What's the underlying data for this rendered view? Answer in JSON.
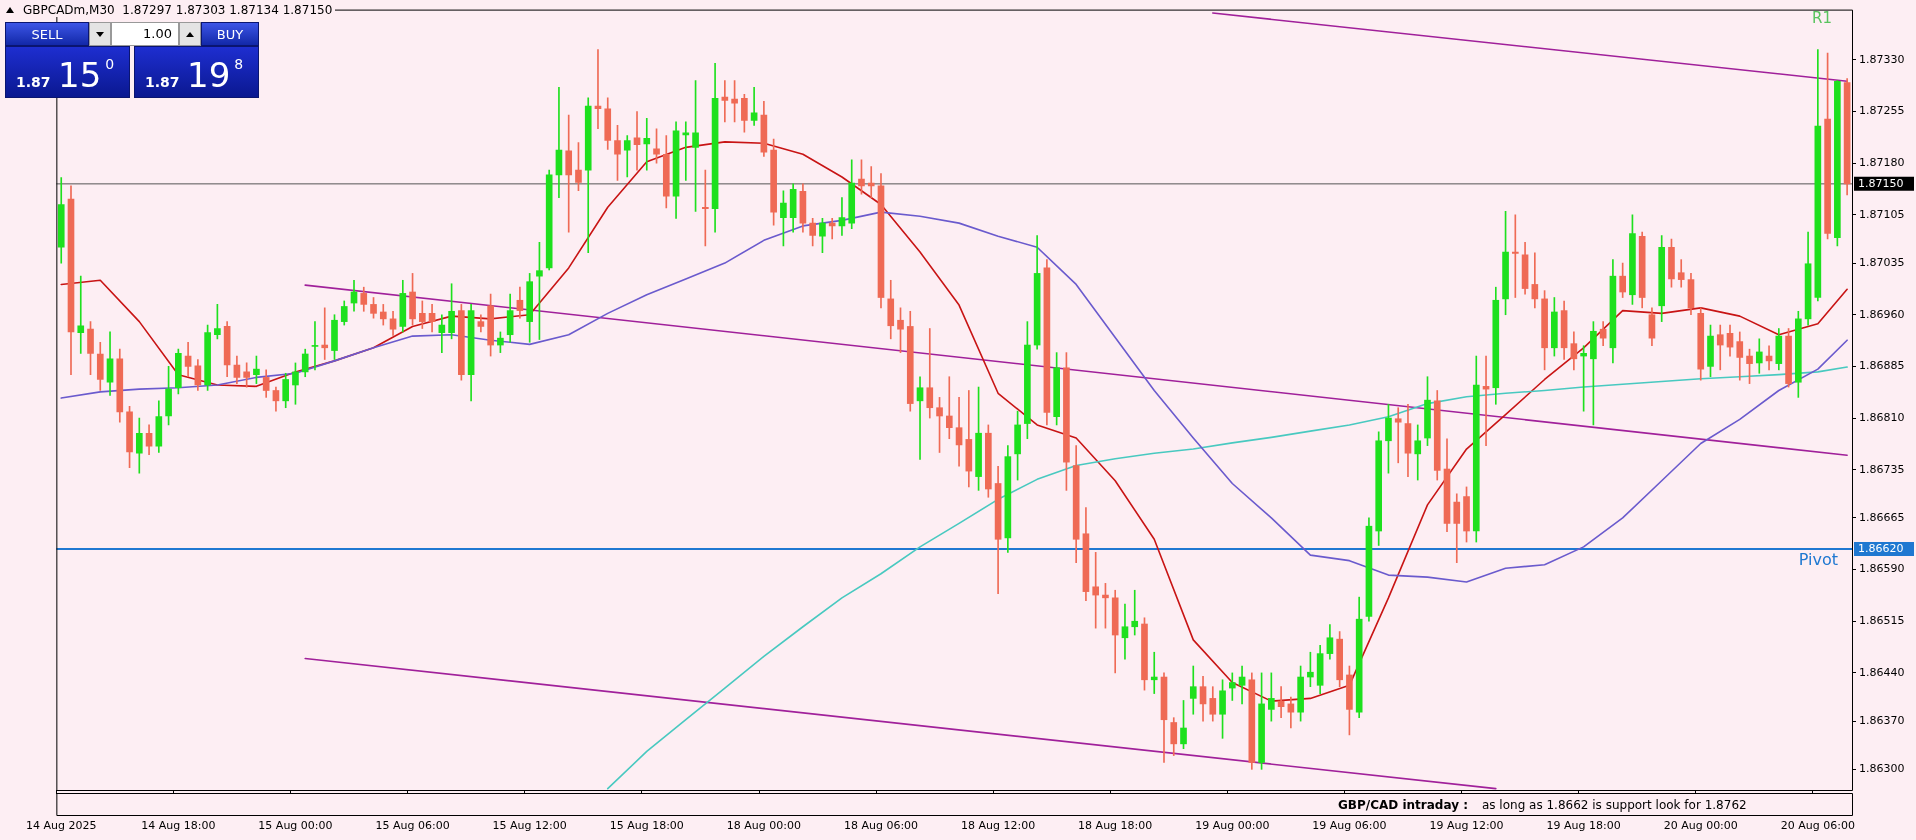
{
  "chart_data": {
    "type": "candlestick",
    "title": "GBPCADm,M30  1.87297 1.87303 1.87134 1.87150",
    "categories": [
      "14 Aug 2025",
      null,
      null,
      null,
      null,
      null,
      null,
      null,
      null,
      null,
      null,
      null,
      "14 Aug 18:00",
      null,
      null,
      null,
      null,
      null,
      null,
      null,
      null,
      null,
      null,
      null,
      "15 Aug 00:00",
      null,
      null,
      null,
      null,
      null,
      null,
      null,
      null,
      null,
      null,
      null,
      "15 Aug 06:00",
      null,
      null,
      null,
      null,
      null,
      null,
      null,
      null,
      null,
      null,
      null,
      "15 Aug 12:00",
      null,
      null,
      null,
      null,
      null,
      null,
      null,
      null,
      null,
      null,
      null,
      "15 Aug 18:00",
      null,
      null,
      null,
      null,
      null,
      null,
      null,
      null,
      null,
      null,
      null,
      "18 Aug 00:00",
      null,
      null,
      null,
      null,
      null,
      null,
      null,
      null,
      null,
      null,
      null,
      "18 Aug 06:00",
      null,
      null,
      null,
      null,
      null,
      null,
      null,
      null,
      null,
      null,
      null,
      "18 Aug 12:00",
      null,
      null,
      null,
      null,
      null,
      null,
      null,
      null,
      null,
      null,
      null,
      "18 Aug 18:00",
      null,
      null,
      null,
      null,
      null,
      null,
      null,
      null,
      null,
      null,
      null,
      "19 Aug 00:00",
      null,
      null,
      null,
      null,
      null,
      null,
      null,
      null,
      null,
      null,
      null,
      "19 Aug 06:00",
      null,
      null,
      null,
      null,
      null,
      null,
      null,
      null,
      null,
      null,
      null,
      "19 Aug 12:00",
      null,
      null,
      null,
      null,
      null,
      null,
      null,
      null,
      null,
      null,
      null,
      "19 Aug 18:00",
      null,
      null,
      null,
      null,
      null,
      null,
      null,
      null,
      null,
      null,
      null,
      "20 Aug 00:00",
      null,
      null,
      null,
      null,
      null,
      null,
      null,
      null,
      null,
      null,
      null,
      "20 Aug 06:00",
      null,
      null,
      null
    ],
    "ohlc": [
      [
        1.87058,
        1.87159,
        1.87035,
        1.8712
      ],
      [
        1.87128,
        1.87147,
        1.86873,
        1.86935
      ],
      [
        1.86934,
        1.87016,
        1.86904,
        1.86944
      ],
      [
        1.86939,
        1.8695,
        1.86873,
        1.86904
      ],
      [
        1.86903,
        1.8692,
        1.8685,
        1.86866
      ],
      [
        1.86862,
        1.86935,
        1.86843,
        1.86896
      ],
      [
        1.86896,
        1.8691,
        1.86804,
        1.86819
      ],
      [
        1.86819,
        1.86827,
        1.86738,
        1.86761
      ],
      [
        1.86759,
        1.8681,
        1.8673,
        1.86788
      ],
      [
        1.86788,
        1.868,
        1.86757,
        1.86769
      ],
      [
        1.86769,
        1.86835,
        1.8676,
        1.86812
      ],
      [
        1.86813,
        1.86885,
        1.868,
        1.86852
      ],
      [
        1.86854,
        1.8691,
        1.86845,
        1.86904
      ],
      [
        1.869,
        1.8692,
        1.8687,
        1.86885
      ],
      [
        1.86886,
        1.86895,
        1.8685,
        1.86858
      ],
      [
        1.86858,
        1.86945,
        1.8685,
        1.86934
      ],
      [
        1.86931,
        1.86975,
        1.86925,
        1.8694
      ],
      [
        1.86943,
        1.8695,
        1.8687,
        1.86887
      ],
      [
        1.86887,
        1.869,
        1.8686,
        1.86869
      ],
      [
        1.86877,
        1.8689,
        1.86855,
        1.86869
      ],
      [
        1.86873,
        1.869,
        1.8686,
        1.86881
      ],
      [
        1.86869,
        1.8688,
        1.8684,
        1.8685
      ],
      [
        1.8685,
        1.86855,
        1.8682,
        1.86835
      ],
      [
        1.86835,
        1.86875,
        1.86825,
        1.86866
      ],
      [
        1.86858,
        1.8689,
        1.8683,
        1.86877
      ],
      [
        1.86877,
        1.8691,
        1.8687,
        1.86903
      ],
      [
        1.86914,
        1.8695,
        1.8688,
        1.86914
      ],
      [
        1.86916,
        1.8697,
        1.86895,
        1.86912
      ],
      [
        1.86908,
        1.8696,
        1.86895,
        1.86952
      ],
      [
        1.8695,
        1.8698,
        1.86945,
        1.86972
      ],
      [
        1.86977,
        1.8701,
        1.86965,
        1.86993
      ],
      [
        1.86991,
        1.87,
        1.86965,
        1.86975
      ],
      [
        1.86975,
        1.86985,
        1.86955,
        1.86962
      ],
      [
        1.86964,
        1.86975,
        1.86945,
        1.86954
      ],
      [
        1.86954,
        1.86965,
        1.8693,
        1.86939
      ],
      [
        1.86943,
        1.8701,
        1.86935,
        1.86991
      ],
      [
        1.86993,
        1.8702,
        1.86945,
        1.86954
      ],
      [
        1.86962,
        1.8698,
        1.8694,
        1.8695
      ],
      [
        1.86962,
        1.86975,
        1.86935,
        1.8695
      ],
      [
        1.86934,
        1.8696,
        1.86905,
        1.86945
      ],
      [
        1.86934,
        1.87005,
        1.86925,
        1.86965
      ],
      [
        1.86966,
        1.86975,
        1.86865,
        1.86873
      ],
      [
        1.86873,
        1.86975,
        1.86835,
        1.86966
      ],
      [
        1.8695,
        1.8696,
        1.86935,
        1.86943
      ],
      [
        1.86973,
        1.8699,
        1.869,
        1.86916
      ],
      [
        1.86916,
        1.86935,
        1.86905,
        1.86926
      ],
      [
        1.86931,
        1.8699,
        1.8692,
        1.86966
      ],
      [
        1.86981,
        1.87,
        1.86955,
        1.86966
      ],
      [
        1.8695,
        1.8702,
        1.8692,
        1.87008
      ],
      [
        1.87016,
        1.87065,
        1.86924,
        1.87024
      ],
      [
        1.87028,
        1.8717,
        1.87025,
        1.87163
      ],
      [
        1.87163,
        1.8729,
        1.8713,
        1.87199
      ],
      [
        1.87198,
        1.8725,
        1.8708,
        1.87163
      ],
      [
        1.8717,
        1.8721,
        1.8714,
        1.87152
      ],
      [
        1.8717,
        1.87275,
        1.8705,
        1.87263
      ],
      [
        1.87263,
        1.87345,
        1.8723,
        1.87259
      ],
      [
        1.87259,
        1.87275,
        1.872,
        1.87213
      ],
      [
        1.87213,
        1.87235,
        1.87155,
        1.87193
      ],
      [
        1.87199,
        1.8722,
        1.8716,
        1.87213
      ],
      [
        1.87217,
        1.87255,
        1.8717,
        1.87207
      ],
      [
        1.87208,
        1.87245,
        1.8717,
        1.87216
      ],
      [
        1.87201,
        1.8723,
        1.8718,
        1.87193
      ],
      [
        1.87193,
        1.8722,
        1.87115,
        1.87132
      ],
      [
        1.87132,
        1.8724,
        1.871,
        1.87227
      ],
      [
        1.87221,
        1.8724,
        1.87155,
        1.87224
      ],
      [
        1.87203,
        1.873,
        1.8711,
        1.87224
      ],
      [
        1.87116,
        1.8717,
        1.8706,
        1.87114
      ],
      [
        1.87114,
        1.87325,
        1.8708,
        1.87274
      ],
      [
        1.87276,
        1.873,
        1.8724,
        1.87271
      ],
      [
        1.87273,
        1.873,
        1.8724,
        1.87267
      ],
      [
        1.87274,
        1.8728,
        1.87225,
        1.87242
      ],
      [
        1.87242,
        1.8729,
        1.87235,
        1.87253
      ],
      [
        1.8725,
        1.8727,
        1.8719,
        1.87196
      ],
      [
        1.87199,
        1.87215,
        1.8709,
        1.87109
      ],
      [
        1.87101,
        1.8714,
        1.8706,
        1.87122
      ],
      [
        1.87101,
        1.8715,
        1.8708,
        1.87142
      ],
      [
        1.87139,
        1.8715,
        1.8708,
        1.87093
      ],
      [
        1.87093,
        1.871,
        1.8706,
        1.87075
      ],
      [
        1.87074,
        1.871,
        1.8705,
        1.87093
      ],
      [
        1.87093,
        1.871,
        1.8707,
        1.87089
      ],
      [
        1.87089,
        1.8713,
        1.87075,
        1.87101
      ],
      [
        1.87093,
        1.87185,
        1.87085,
        1.87151
      ],
      [
        1.87157,
        1.87185,
        1.87135,
        1.87147
      ],
      [
        1.87151,
        1.87175,
        1.8713,
        1.87147
      ],
      [
        1.87147,
        1.87165,
        1.8697,
        1.86985
      ],
      [
        1.86983,
        1.8701,
        1.86925,
        1.86944
      ],
      [
        1.86952,
        1.8697,
        1.86905,
        1.86939
      ],
      [
        1.86943,
        1.86965,
        1.8682,
        1.86831
      ],
      [
        1.86835,
        1.8687,
        1.8675,
        1.86854
      ],
      [
        1.86854,
        1.8694,
        1.8681,
        1.86825
      ],
      [
        1.86825,
        1.8684,
        1.8676,
        1.86813
      ],
      [
        1.86813,
        1.8687,
        1.8678,
        1.86796
      ],
      [
        1.86796,
        1.8684,
        1.8674,
        1.86771
      ],
      [
        1.86779,
        1.8685,
        1.8671,
        1.86733
      ],
      [
        1.86725,
        1.86855,
        1.86705,
        1.86788
      ],
      [
        1.86788,
        1.868,
        1.86695,
        1.86707
      ],
      [
        1.86715,
        1.8674,
        1.86555,
        1.86634
      ],
      [
        1.86636,
        1.8677,
        1.86615,
        1.86754
      ],
      [
        1.86758,
        1.8682,
        1.8672,
        1.868
      ],
      [
        1.86802,
        1.8695,
        1.8678,
        1.86916
      ],
      [
        1.86916,
        1.87075,
        1.8691,
        1.8702
      ],
      [
        1.87028,
        1.8704,
        1.868,
        1.86818
      ],
      [
        1.86812,
        1.86905,
        1.868,
        1.86883
      ],
      [
        1.86883,
        1.86905,
        1.86705,
        1.86746
      ],
      [
        1.86741,
        1.8677,
        1.866,
        1.86634
      ],
      [
        1.86642,
        1.8668,
        1.86545,
        1.86558
      ],
      [
        1.86565,
        1.86615,
        1.86505,
        1.86553
      ],
      [
        1.86553,
        1.8657,
        1.86505,
        1.86549
      ],
      [
        1.86549,
        1.8656,
        1.8644,
        1.86495
      ],
      [
        1.86491,
        1.8654,
        1.8646,
        1.86507
      ],
      [
        1.86507,
        1.8656,
        1.86495,
        1.86515
      ],
      [
        1.86511,
        1.8652,
        1.86415,
        1.8643
      ],
      [
        1.8643,
        1.8647,
        1.8641,
        1.86434
      ],
      [
        1.86434,
        1.8644,
        1.8631,
        1.86372
      ],
      [
        1.86368,
        1.86375,
        1.8632,
        1.86337
      ],
      [
        1.86337,
        1.864,
        1.8633,
        1.8636
      ],
      [
        1.86403,
        1.8645,
        1.8638,
        1.8642
      ],
      [
        1.8642,
        1.86435,
        1.8637,
        1.86395
      ],
      [
        1.86403,
        1.8642,
        1.8637,
        1.8638
      ],
      [
        1.8638,
        1.8643,
        1.86345,
        1.86414
      ],
      [
        1.86418,
        1.8644,
        1.864,
        1.86426
      ],
      [
        1.86422,
        1.8645,
        1.86395,
        1.86434
      ],
      [
        1.8643,
        1.8644,
        1.863,
        1.8631
      ],
      [
        1.8631,
        1.8644,
        1.863,
        1.86395
      ],
      [
        1.86387,
        1.8644,
        1.8637,
        1.86403
      ],
      [
        1.86399,
        1.8642,
        1.86375,
        1.86391
      ],
      [
        1.86395,
        1.86405,
        1.8636,
        1.86383
      ],
      [
        1.86383,
        1.8645,
        1.8637,
        1.86434
      ],
      [
        1.86434,
        1.8647,
        1.8642,
        1.86441
      ],
      [
        1.86422,
        1.8648,
        1.8641,
        1.86468
      ],
      [
        1.86468,
        1.8651,
        1.8646,
        1.86491
      ],
      [
        1.86489,
        1.865,
        1.8642,
        1.8643
      ],
      [
        1.86437,
        1.8645,
        1.8635,
        1.86387
      ],
      [
        1.86383,
        1.8655,
        1.86375,
        1.86518
      ],
      [
        1.86522,
        1.86665,
        1.86515,
        1.86653
      ],
      [
        1.86646,
        1.8679,
        1.86625,
        1.86777
      ],
      [
        1.86777,
        1.8683,
        1.8673,
        1.8681
      ],
      [
        1.86809,
        1.86825,
        1.86745,
        1.86804
      ],
      [
        1.86802,
        1.8683,
        1.86725,
        1.86759
      ],
      [
        1.86758,
        1.868,
        1.8672,
        1.86777
      ],
      [
        1.86781,
        1.8687,
        1.8677,
        1.86836
      ],
      [
        1.86835,
        1.8685,
        1.8672,
        1.86734
      ],
      [
        1.86736,
        1.8678,
        1.86645,
        1.86657
      ],
      [
        1.86688,
        1.867,
        1.866,
        1.86657
      ],
      [
        1.86696,
        1.8671,
        1.8663,
        1.86646
      ],
      [
        1.86646,
        1.869,
        1.8663,
        1.86858
      ],
      [
        1.86856,
        1.869,
        1.8677,
        1.86852
      ],
      [
        1.86854,
        1.87,
        1.8683,
        1.86981
      ],
      [
        1.86983,
        1.8711,
        1.8696,
        1.87051
      ],
      [
        1.87051,
        1.87105,
        1.86985,
        1.87049
      ],
      [
        1.87047,
        1.87065,
        1.8699,
        1.86998
      ],
      [
        1.87004,
        1.8705,
        1.8697,
        1.86983
      ],
      [
        1.86983,
        1.86995,
        1.8688,
        1.86912
      ],
      [
        1.86912,
        1.86985,
        1.869,
        1.86964
      ],
      [
        1.86966,
        1.8698,
        1.86895,
        1.86912
      ],
      [
        1.86918,
        1.86935,
        1.8688,
        1.86896
      ],
      [
        1.869,
        1.86915,
        1.8682,
        1.86904
      ],
      [
        1.86896,
        1.8695,
        1.868,
        1.86936
      ],
      [
        1.86939,
        1.8695,
        1.86915,
        1.86926
      ],
      [
        1.86912,
        1.8704,
        1.8689,
        1.87016
      ],
      [
        1.87016,
        1.87035,
        1.86985,
        1.86993
      ],
      [
        1.86989,
        1.87105,
        1.86975,
        1.87078
      ],
      [
        1.87074,
        1.8708,
        1.8697,
        1.86985
      ],
      [
        1.8696,
        1.8697,
        1.86915,
        1.86926
      ],
      [
        1.86973,
        1.87075,
        1.8695,
        1.87058
      ],
      [
        1.87058,
        1.8707,
        1.87,
        1.87012
      ],
      [
        1.87021,
        1.8704,
        1.87,
        1.87011
      ],
      [
        1.87011,
        1.8702,
        1.8696,
        1.8697
      ],
      [
        1.86962,
        1.8697,
        1.86865,
        1.86881
      ],
      [
        1.86885,
        1.86945,
        1.8687,
        1.86929
      ],
      [
        1.86931,
        1.86945,
        1.8688,
        1.86916
      ],
      [
        1.86933,
        1.86945,
        1.869,
        1.86913
      ],
      [
        1.86921,
        1.86935,
        1.86865,
        1.86898
      ],
      [
        1.869,
        1.8691,
        1.8686,
        1.86889
      ],
      [
        1.8689,
        1.86925,
        1.86875,
        1.86906
      ],
      [
        1.869,
        1.86915,
        1.8688,
        1.86893
      ],
      [
        1.86889,
        1.8694,
        1.8688,
        1.86929
      ],
      [
        1.86929,
        1.8694,
        1.86855,
        1.8686
      ],
      [
        1.86862,
        1.86965,
        1.8684,
        1.86954
      ],
      [
        1.86954,
        1.8708,
        1.86945,
        1.87034
      ],
      [
        1.86985,
        1.87345,
        1.8698,
        1.87234
      ],
      [
        1.87244,
        1.8734,
        1.8707,
        1.87078
      ],
      [
        1.87072,
        1.873,
        1.8706,
        1.87299
      ],
      [
        1.87297,
        1.87303,
        1.87134,
        1.8715
      ]
    ],
    "series": [
      {
        "type": "line",
        "color": "#6a5acd",
        "values": [
          1.86839,
          null,
          null,
          null,
          1.86848,
          null,
          null,
          null,
          1.86852,
          null,
          null,
          null,
          1.86854,
          null,
          null,
          null,
          1.86858,
          null,
          null,
          null,
          1.86869,
          null,
          null,
          null,
          1.86875,
          null,
          null,
          null,
          1.86893,
          null,
          null,
          null,
          1.86912,
          null,
          null,
          null,
          1.86929,
          null,
          null,
          null,
          1.86931,
          null,
          null,
          null,
          1.86923,
          null,
          null,
          null,
          1.86917,
          null,
          null,
          null,
          1.86931,
          null,
          null,
          null,
          1.86962,
          null,
          null,
          null,
          1.86989,
          null,
          null,
          null,
          1.87012,
          null,
          null,
          null,
          1.87035,
          null,
          null,
          null,
          1.87068,
          null,
          null,
          null,
          1.87089,
          null,
          null,
          null,
          1.87097,
          null,
          null,
          null,
          1.87109,
          null,
          null,
          null,
          1.87103,
          null,
          null,
          null,
          1.87093,
          null,
          null,
          null,
          1.87074,
          null,
          null,
          null,
          1.87058,
          null,
          null,
          null,
          1.87004,
          null,
          null,
          null,
          1.86927,
          null,
          null,
          null,
          1.8685,
          null,
          null,
          null,
          1.86781,
          null,
          null,
          null,
          1.86715,
          null,
          null,
          null,
          1.86665,
          null,
          null,
          null,
          1.86611,
          null,
          null,
          null,
          1.86603,
          null,
          null,
          null,
          1.86582,
          null,
          null,
          null,
          1.86579,
          null,
          null,
          null,
          1.86572,
          null,
          null,
          null,
          1.86592,
          null,
          null,
          null,
          1.86597,
          null,
          null,
          null,
          1.86623,
          null,
          null,
          null,
          1.86665,
          null,
          null,
          null,
          1.86719,
          null,
          null,
          null,
          1.86773,
          null,
          null,
          null,
          1.86808,
          null,
          null,
          null,
          1.8685,
          null,
          null,
          null,
          1.86881,
          null,
          null,
          1.86923
        ]
      },
      {
        "type": "line",
        "color": "#48c9c0",
        "values": [
          null,
          null,
          null,
          null,
          null,
          null,
          null,
          null,
          null,
          null,
          null,
          null,
          null,
          null,
          null,
          null,
          null,
          null,
          null,
          null,
          null,
          null,
          null,
          null,
          null,
          null,
          null,
          null,
          null,
          null,
          null,
          null,
          null,
          null,
          null,
          null,
          null,
          null,
          null,
          null,
          null,
          null,
          null,
          null,
          null,
          null,
          null,
          null,
          null,
          null,
          null,
          null,
          null,
          null,
          null,
          null,
          1.86272,
          null,
          null,
          null,
          1.86326,
          null,
          null,
          null,
          1.86372,
          null,
          null,
          null,
          1.86418,
          null,
          null,
          null,
          1.86464,
          null,
          null,
          null,
          1.86507,
          null,
          null,
          null,
          1.86549,
          null,
          null,
          null,
          1.86584,
          null,
          null,
          null,
          1.86623,
          null,
          null,
          null,
          1.86657,
          null,
          null,
          null,
          1.86692,
          null,
          null,
          null,
          1.86721,
          null,
          null,
          null,
          1.86741,
          null,
          null,
          null,
          1.86751,
          null,
          null,
          null,
          1.86759,
          null,
          null,
          null,
          1.86765,
          null,
          null,
          null,
          1.86774,
          null,
          null,
          null,
          1.86782,
          null,
          null,
          null,
          1.86791,
          null,
          null,
          null,
          1.868,
          null,
          null,
          null,
          1.86812,
          null,
          null,
          null,
          1.86831,
          null,
          null,
          null,
          1.86841,
          null,
          null,
          null,
          1.86846,
          null,
          null,
          null,
          1.8685,
          null,
          null,
          null,
          1.86855,
          null,
          null,
          null,
          1.86859,
          null,
          null,
          null,
          1.86863,
          null,
          null,
          null,
          1.86867,
          null,
          null,
          null,
          1.8687,
          null,
          null,
          null,
          1.86873,
          null,
          null,
          null,
          1.86877,
          null,
          null,
          1.86884
        ]
      },
      {
        "type": "line",
        "color": "#c81414",
        "values": [
          1.87004,
          null,
          null,
          null,
          1.8701,
          null,
          null,
          null,
          1.8695,
          null,
          null,
          null,
          1.86873,
          null,
          null,
          null,
          1.86858,
          null,
          null,
          null,
          1.86856,
          null,
          null,
          null,
          1.86877,
          null,
          null,
          null,
          1.86893,
          null,
          null,
          null,
          1.86912,
          null,
          null,
          null,
          1.86943,
          null,
          null,
          null,
          1.86958,
          null,
          null,
          null,
          1.86954,
          null,
          null,
          null,
          1.8696,
          null,
          null,
          null,
          1.87028,
          null,
          null,
          null,
          1.87116,
          null,
          null,
          null,
          1.87182,
          null,
          null,
          null,
          1.87203,
          null,
          null,
          null,
          1.87211,
          null,
          null,
          null,
          1.87209,
          null,
          null,
          null,
          1.87193,
          null,
          null,
          null,
          1.8716,
          null,
          null,
          null,
          1.8712,
          null,
          null,
          null,
          1.87051,
          null,
          null,
          null,
          1.86974,
          null,
          null,
          null,
          1.86846,
          null,
          null,
          null,
          1.868,
          null,
          null,
          null,
          1.86781,
          null,
          null,
          null,
          1.86719,
          null,
          null,
          null,
          1.86634,
          null,
          null,
          null,
          1.86488,
          null,
          null,
          null,
          1.86426,
          null,
          null,
          null,
          1.86399,
          null,
          null,
          null,
          1.86403,
          null,
          null,
          null,
          1.86422,
          null,
          null,
          null,
          1.86549,
          null,
          null,
          null,
          1.86684,
          null,
          null,
          null,
          1.86765,
          null,
          null,
          null,
          1.86815,
          null,
          null,
          null,
          1.86866,
          null,
          null,
          null,
          1.86912,
          null,
          null,
          null,
          1.86966,
          null,
          null,
          null,
          1.86962,
          null,
          null,
          null,
          1.8697,
          null,
          null,
          null,
          1.86958,
          null,
          null,
          null,
          1.86931,
          null,
          null,
          null,
          1.86947,
          null,
          null,
          1.86997
        ]
      },
      {
        "type": "line",
        "color": "#a0209a",
        "values": [
          null,
          null,
          null,
          null,
          null,
          null,
          null,
          null,
          null,
          null,
          null,
          null,
          null,
          null,
          null,
          null,
          null,
          null,
          null,
          null,
          null,
          null,
          null,
          null,
          null,
          null,
          null,
          null,
          null,
          null,
          null,
          null,
          null,
          null,
          null,
          null,
          null,
          null,
          null,
          null,
          null,
          null,
          null,
          null,
          null,
          null,
          null,
          null,
          null,
          null,
          null,
          null,
          null,
          null,
          null,
          null,
          null,
          null,
          null,
          null,
          null,
          null,
          null,
          null,
          null,
          null,
          null,
          null,
          null,
          null,
          null,
          null,
          null,
          null,
          null,
          null,
          null,
          null,
          null,
          null,
          null,
          null,
          null,
          null,
          null,
          null,
          null,
          null,
          null,
          null,
          null,
          null,
          null,
          null,
          null,
          null,
          null,
          null,
          null,
          null,
          null,
          null,
          null,
          null,
          null,
          null,
          null,
          null,
          null,
          null,
          null,
          null,
          null,
          null,
          null,
          null,
          null,
          null,
          1.87398,
          null,
          null,
          null,
          null,
          null,
          null,
          null,
          null,
          null,
          null,
          null,
          null,
          null,
          null,
          null,
          null,
          null,
          null,
          null,
          null,
          null,
          null,
          null,
          null,
          null,
          null,
          null,
          null,
          null,
          null,
          null,
          null,
          null,
          null,
          null,
          null,
          null,
          null,
          null,
          null,
          null,
          null,
          null,
          null,
          null,
          null,
          null,
          null,
          null,
          null,
          null,
          null,
          null,
          null,
          null,
          null,
          null,
          null,
          null,
          null,
          null,
          null,
          null,
          null,
          1.87299
        ]
      },
      {
        "type": "line",
        "color": "#a0209a",
        "values": [
          null,
          null,
          null,
          null,
          null,
          null,
          null,
          null,
          null,
          null,
          null,
          null,
          null,
          null,
          null,
          null,
          null,
          null,
          null,
          null,
          null,
          null,
          null,
          null,
          null,
          1.87003,
          null,
          null,
          null,
          null,
          null,
          null,
          null,
          null,
          null,
          null,
          null,
          null,
          null,
          null,
          null,
          null,
          null,
          null,
          null,
          null,
          null,
          null,
          null,
          null,
          null,
          null,
          null,
          null,
          null,
          null,
          null,
          null,
          null,
          null,
          null,
          null,
          null,
          null,
          null,
          null,
          null,
          null,
          null,
          null,
          null,
          null,
          null,
          null,
          null,
          null,
          null,
          null,
          null,
          null,
          null,
          null,
          null,
          null,
          null,
          null,
          null,
          null,
          null,
          null,
          null,
          null,
          null,
          null,
          null,
          null,
          null,
          null,
          null,
          null,
          null,
          null,
          null,
          null,
          null,
          null,
          null,
          null,
          null,
          null,
          null,
          null,
          null,
          null,
          null,
          null,
          null,
          null,
          null,
          null,
          null,
          null,
          null,
          null,
          null,
          null,
          null,
          null,
          null,
          null,
          null,
          null,
          null,
          null,
          null,
          null,
          null,
          null,
          null,
          null,
          null,
          null,
          null,
          null,
          null,
          null,
          null,
          null,
          null,
          null,
          null,
          null,
          null,
          null,
          null,
          null,
          null,
          null,
          null,
          null,
          null,
          null,
          null,
          null,
          null,
          null,
          null,
          null,
          null,
          null,
          null,
          null,
          null,
          null,
          null,
          null,
          null,
          null,
          null,
          null,
          null,
          null,
          null,
          1.86756
        ]
      },
      {
        "type": "line",
        "color": "#a0209a",
        "values": [
          null,
          null,
          null,
          null,
          null,
          null,
          null,
          null,
          null,
          null,
          null,
          null,
          null,
          null,
          null,
          null,
          null,
          null,
          null,
          null,
          null,
          null,
          null,
          null,
          null,
          1.86461,
          null,
          null,
          null,
          null,
          null,
          null,
          null,
          null,
          null,
          null,
          null,
          null,
          null,
          null,
          null,
          null,
          null,
          null,
          null,
          null,
          null,
          null,
          null,
          null,
          null,
          null,
          null,
          null,
          null,
          null,
          null,
          null,
          null,
          null,
          null,
          null,
          null,
          null,
          null,
          null,
          null,
          null,
          null,
          null,
          null,
          null,
          null,
          null,
          null,
          null,
          null,
          null,
          null,
          null,
          null,
          null,
          null,
          null,
          null,
          null,
          null,
          null,
          null,
          null,
          null,
          null,
          null,
          null,
          null,
          null,
          null,
          null,
          null,
          null,
          null,
          null,
          null,
          null,
          null,
          null,
          null,
          null,
          null,
          null,
          null,
          null,
          null,
          null,
          null,
          null,
          null,
          null,
          null,
          null,
          null,
          null,
          null,
          null,
          null,
          null,
          null,
          null,
          null,
          null,
          null,
          null,
          null,
          null,
          null,
          null,
          null,
          null,
          null,
          null,
          null,
          null,
          null,
          null,
          null,
          null,
          null,
          1.86272,
          null,
          null,
          null,
          null,
          null,
          null,
          null,
          null,
          null,
          null,
          null,
          null,
          null,
          null,
          null,
          null,
          null,
          null,
          null,
          null,
          null,
          null,
          null,
          null,
          null,
          null,
          null,
          null,
          null,
          null,
          null,
          null,
          null,
          null,
          null,
          null
        ]
      }
    ],
    "ylim": [
      1.8627,
      1.87403
    ],
    "yticks": [
      {
        "value": 1.863,
        "label": "1.86300"
      },
      {
        "value": 1.8637,
        "label": "1.86370"
      },
      {
        "value": 1.8644,
        "label": "1.86440"
      },
      {
        "value": 1.86515,
        "label": "1.86515"
      },
      {
        "value": 1.8659,
        "label": "1.86590"
      },
      {
        "value": 1.86665,
        "label": "1.86665"
      },
      {
        "value": 1.86735,
        "label": "1.86735"
      },
      {
        "value": 1.8681,
        "label": "1.86810"
      },
      {
        "value": 1.86885,
        "label": "1.86885"
      },
      {
        "value": 1.8696,
        "label": "1.86960"
      },
      {
        "value": 1.87035,
        "label": "1.87035"
      },
      {
        "value": 1.87105,
        "label": "1.87105"
      },
      {
        "value": 1.8718,
        "label": "1.87180"
      },
      {
        "value": 1.87255,
        "label": "1.87255"
      },
      {
        "value": 1.8733,
        "label": "1.87330"
      }
    ],
    "ref_lines": [
      {
        "axis": "y",
        "value": 1.8715,
        "color": "#555555"
      },
      {
        "axis": "y",
        "value": 1.8662,
        "label": "Pivot",
        "color": "#1f78d1"
      }
    ],
    "annotations": [
      "SELL",
      "1.00",
      "BUY",
      "1.87",
      "15$^{0}$",
      "1.87",
      "19$^{8}$",
      "GBP/CAD intraday :",
      "as long as 1.8662 is support look for 1.8762",
      "R1",
      "1.87150",
      "1.86620"
    ]
  }
}
